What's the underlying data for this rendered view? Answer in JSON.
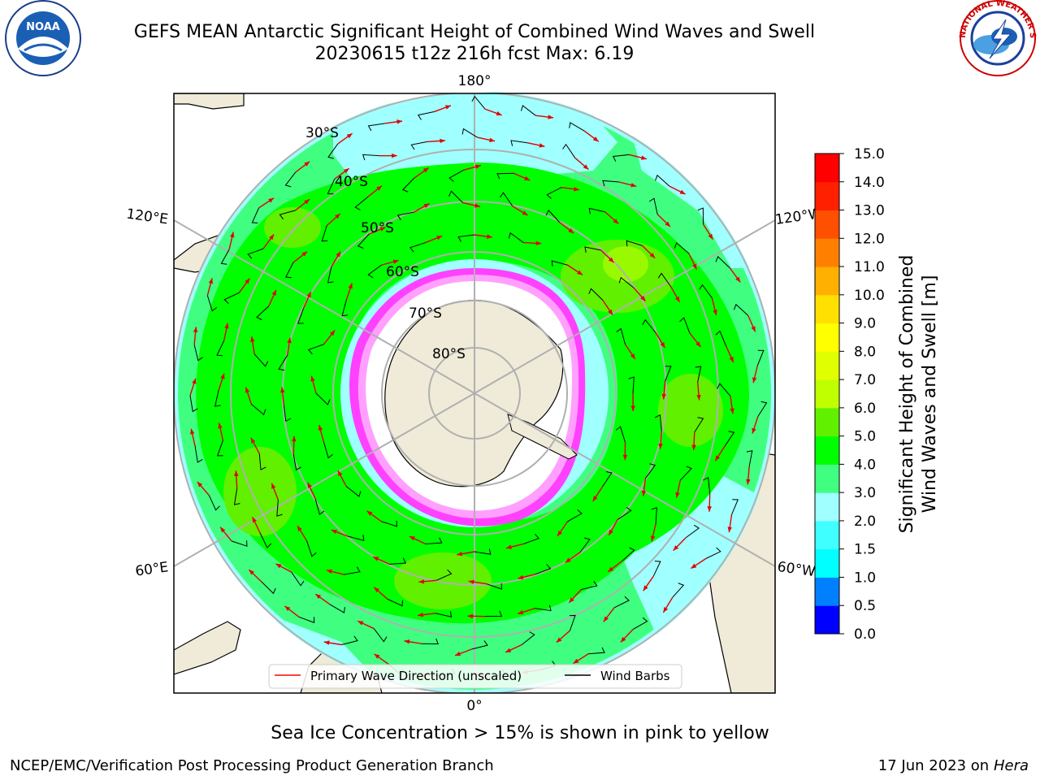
{
  "title": {
    "line1": "GEFS MEAN Antarctic Significant Height of Combined Wind Waves and Swell",
    "line2": "20230615 t12z 216h fcst   Max: 6.19"
  },
  "logos": {
    "left": {
      "text": "NOAA",
      "icon": "noaa-logo"
    },
    "right": {
      "text": "NATIONAL WEATHER SERVICE",
      "icon": "nws-logo"
    }
  },
  "map": {
    "projection": "south-polar-stereographic",
    "meridian_labels": {
      "top": "180°",
      "bottom": "0°",
      "upper_left": "120°E",
      "upper_right": "120°W",
      "lower_left": "60°E",
      "lower_right": "60°W"
    },
    "parallel_labels": [
      "30°S",
      "40°S",
      "50°S",
      "60°S",
      "70°S",
      "80°S"
    ]
  },
  "legend": {
    "entries": [
      {
        "label": "Primary Wave Direction (unscaled)",
        "color": "#ff0000"
      },
      {
        "label": "Wind Barbs",
        "color": "#000000"
      }
    ]
  },
  "colorbar": {
    "label_line1": "Significant Height of Combined",
    "label_line2": "Wind Waves and Swell [m]",
    "ticks": [
      "0.0",
      "0.5",
      "1.0",
      "1.5",
      "2.0",
      "3.0",
      "4.0",
      "5.0",
      "6.0",
      "7.0",
      "8.0",
      "9.0",
      "10.0",
      "11.0",
      "12.0",
      "13.0",
      "14.0",
      "15.0"
    ],
    "colors": [
      "#0000ff",
      "#0080ff",
      "#00ffff",
      "#40ffff",
      "#a0ffff",
      "#40ff80",
      "#00ff00",
      "#60f000",
      "#c0ff00",
      "#e0ff00",
      "#ffff00",
      "#ffe000",
      "#ffb000",
      "#ff8000",
      "#ff5000",
      "#ff2000",
      "#ff0000"
    ]
  },
  "footer": {
    "subtitle": "Sea Ice Concentration > 15% is shown in pink to yellow",
    "left": "NCEP/EMC/Verification Post Processing Product Generation Branch",
    "right_date": "17 Jun 2023 on",
    "right_host": "Hera"
  }
}
